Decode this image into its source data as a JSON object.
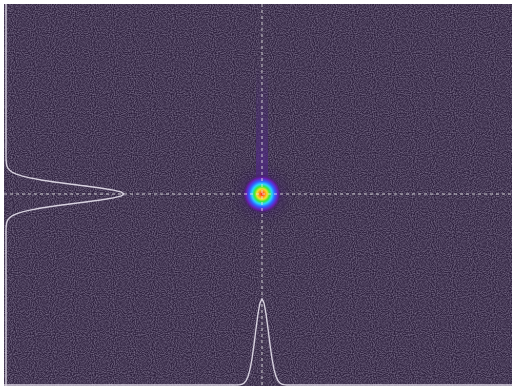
{
  "beam_profile": {
    "colors": {
      "background": "#2a1d3a",
      "noise": "#5d5070",
      "crosshair": "#e8e8e8",
      "profile_curve": "#d8d2e0",
      "beam_outer": "#6a1db0",
      "beam_mid_blue": "#3060ff",
      "beam_cyan": "#28d6ff",
      "beam_green": "#39e83a",
      "beam_yellow": "#f4e32a",
      "beam_orange": "#ff8a1a",
      "beam_core_red": "#ff1f1f"
    },
    "crosshair": {
      "style": "dashed",
      "centered_on_beam": true
    },
    "profiles": {
      "horizontal_profile_shown": true,
      "vertical_profile_shown": true
    },
    "beam": {
      "shape": "round",
      "colormap": "rainbow",
      "has_vertical_streak": true
    }
  }
}
